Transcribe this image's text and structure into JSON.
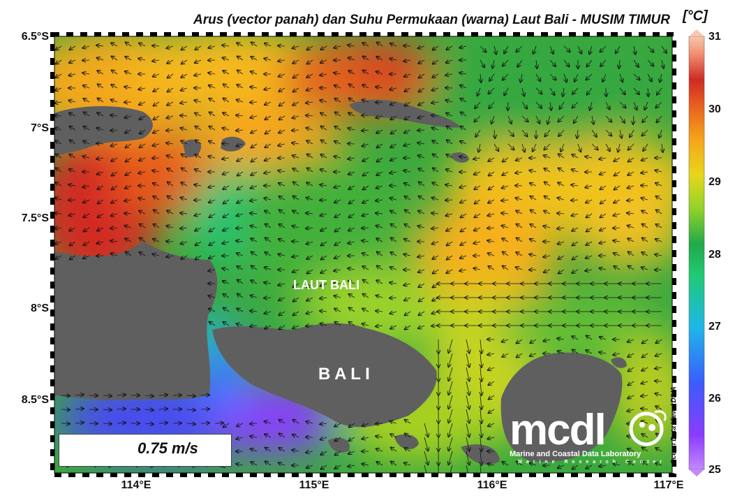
{
  "title": "Arus (vector panah) dan Suhu Permukaan (warna) Laut Bali - MUSIM TIMUR",
  "colorbar": {
    "unit": "[°C]",
    "ticks": [
      "31",
      "30",
      "29",
      "28",
      "27",
      "26",
      "25"
    ],
    "range": [
      25,
      31
    ],
    "colors": [
      "#9b30ff",
      "#3a5cff",
      "#1fb8e8",
      "#1fd07a",
      "#22a84a",
      "#8ed22a",
      "#e8d61a",
      "#f6a51c",
      "#e8601e",
      "#cf2a26",
      "#f0b8a8"
    ]
  },
  "axes": {
    "y_ticks": [
      "6.5°S",
      "7°S",
      "7.5°S",
      "8°S",
      "8.5°S"
    ],
    "x_ticks": [
      "114°E",
      "115°E",
      "116°E",
      "117°E"
    ],
    "lon_range": [
      113.5,
      117
    ],
    "lat_range": [
      -8.9,
      -6.5
    ]
  },
  "labels": {
    "sea": "LAUT BALI",
    "island": "B A L I"
  },
  "scale": {
    "value_label": "0.75 m/s"
  },
  "credit": "Ocean Data View / DIVA",
  "logo": {
    "word": "mcdl",
    "line1": "Marine and Coastal Data Laboratory",
    "line2": "Marine Research Center"
  },
  "colors": {
    "land": "#5f5f5f",
    "frame": "#000000"
  }
}
